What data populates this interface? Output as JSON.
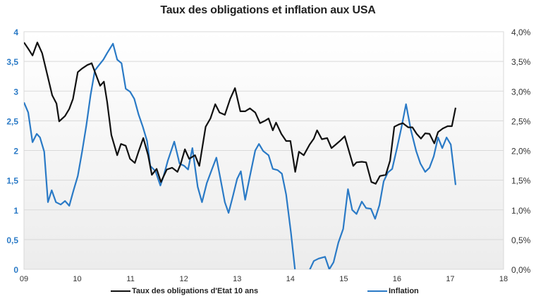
{
  "chart_data": {
    "type": "line",
    "title": "Taux des obligations et inflation aux USA",
    "xlabel": "",
    "ylabel_left": "",
    "ylabel_right": "",
    "x_ticks": [
      "09",
      "10",
      "11",
      "12",
      "13",
      "14",
      "15",
      "16",
      "17",
      "18"
    ],
    "x_range": [
      9,
      18
    ],
    "y_left_ticks": [
      "0",
      "0,5",
      "1",
      "1,5",
      "2",
      "2,5",
      "3",
      "3,5",
      "4"
    ],
    "y_left_range": [
      0,
      4
    ],
    "y_right_ticks": [
      "0,0%",
      "0,5%",
      "1,0%",
      "1,5%",
      "2,0%",
      "2,5%",
      "3,0%",
      "3,5%",
      "4,0%"
    ],
    "y_right_range": [
      0,
      4
    ],
    "grid": true,
    "legend_position": "bottom",
    "colors": {
      "bonds": "#111111",
      "inflation": "#2a7ac6",
      "left_axis": "#2a7ac6",
      "right_axis": "#333333",
      "grid": "#d9d9d9"
    },
    "series": [
      {
        "name": "Taux des obligations d'Etat 10 ans",
        "axis": "left",
        "points": [
          [
            9.0,
            3.82
          ],
          [
            9.09,
            3.7
          ],
          [
            9.16,
            3.6
          ],
          [
            9.25,
            3.82
          ],
          [
            9.34,
            3.64
          ],
          [
            9.45,
            3.23
          ],
          [
            9.53,
            2.93
          ],
          [
            9.61,
            2.79
          ],
          [
            9.66,
            2.49
          ],
          [
            9.77,
            2.58
          ],
          [
            9.85,
            2.7
          ],
          [
            9.92,
            2.87
          ],
          [
            10.01,
            3.32
          ],
          [
            10.09,
            3.38
          ],
          [
            10.19,
            3.44
          ],
          [
            10.27,
            3.47
          ],
          [
            10.37,
            3.23
          ],
          [
            10.43,
            3.09
          ],
          [
            10.5,
            3.16
          ],
          [
            10.56,
            2.82
          ],
          [
            10.64,
            2.26
          ],
          [
            10.75,
            1.92
          ],
          [
            10.82,
            2.11
          ],
          [
            10.91,
            2.08
          ],
          [
            10.99,
            1.86
          ],
          [
            11.08,
            1.79
          ],
          [
            11.15,
            1.98
          ],
          [
            11.24,
            2.21
          ],
          [
            11.33,
            1.92
          ],
          [
            11.4,
            1.59
          ],
          [
            11.49,
            1.69
          ],
          [
            11.57,
            1.47
          ],
          [
            11.68,
            1.68
          ],
          [
            11.78,
            1.71
          ],
          [
            11.88,
            1.64
          ],
          [
            11.94,
            1.77
          ],
          [
            12.02,
            2.02
          ],
          [
            12.1,
            1.86
          ],
          [
            12.21,
            1.92
          ],
          [
            12.29,
            1.74
          ],
          [
            12.41,
            2.4
          ],
          [
            12.5,
            2.54
          ],
          [
            12.59,
            2.78
          ],
          [
            12.67,
            2.64
          ],
          [
            12.77,
            2.6
          ],
          [
            12.87,
            2.87
          ],
          [
            12.96,
            3.05
          ],
          [
            13.06,
            2.66
          ],
          [
            13.15,
            2.66
          ],
          [
            13.24,
            2.71
          ],
          [
            13.34,
            2.64
          ],
          [
            13.43,
            2.46
          ],
          [
            13.52,
            2.5
          ],
          [
            13.59,
            2.54
          ],
          [
            13.67,
            2.34
          ],
          [
            13.73,
            2.47
          ],
          [
            13.83,
            2.28
          ],
          [
            13.92,
            2.16
          ],
          [
            14.0,
            2.16
          ],
          [
            14.09,
            1.64
          ],
          [
            14.16,
            1.98
          ],
          [
            14.25,
            1.92
          ],
          [
            14.36,
            2.1
          ],
          [
            14.44,
            2.2
          ],
          [
            14.5,
            2.34
          ],
          [
            14.59,
            2.19
          ],
          [
            14.69,
            2.21
          ],
          [
            14.77,
            2.04
          ],
          [
            14.85,
            2.1
          ],
          [
            14.94,
            2.17
          ],
          [
            15.02,
            2.24
          ],
          [
            15.09,
            2.02
          ],
          [
            15.18,
            1.74
          ],
          [
            15.24,
            1.8
          ],
          [
            15.34,
            1.81
          ],
          [
            15.42,
            1.8
          ],
          [
            15.52,
            1.47
          ],
          [
            15.6,
            1.44
          ],
          [
            15.68,
            1.57
          ],
          [
            15.79,
            1.59
          ],
          [
            15.87,
            1.83
          ],
          [
            15.95,
            2.4
          ],
          [
            16.04,
            2.44
          ],
          [
            16.11,
            2.46
          ],
          [
            16.21,
            2.39
          ],
          [
            16.29,
            2.39
          ],
          [
            16.37,
            2.28
          ],
          [
            16.45,
            2.2
          ],
          [
            16.53,
            2.29
          ],
          [
            16.61,
            2.28
          ],
          [
            16.7,
            2.12
          ],
          [
            16.77,
            2.31
          ],
          [
            16.86,
            2.37
          ],
          [
            16.95,
            2.41
          ],
          [
            17.03,
            2.41
          ],
          [
            17.1,
            2.72
          ]
        ]
      },
      {
        "name": "Inflation",
        "axis": "right",
        "points": [
          [
            9.0,
            2.81
          ],
          [
            9.08,
            2.64
          ],
          [
            9.16,
            2.14
          ],
          [
            9.24,
            2.28
          ],
          [
            9.3,
            2.22
          ],
          [
            9.38,
            1.98
          ],
          [
            9.45,
            1.13
          ],
          [
            9.52,
            1.33
          ],
          [
            9.6,
            1.13
          ],
          [
            9.69,
            1.09
          ],
          [
            9.77,
            1.15
          ],
          [
            9.85,
            1.07
          ],
          [
            9.93,
            1.33
          ],
          [
            10.01,
            1.57
          ],
          [
            10.09,
            1.98
          ],
          [
            10.17,
            2.42
          ],
          [
            10.25,
            2.93
          ],
          [
            10.33,
            3.35
          ],
          [
            10.41,
            3.44
          ],
          [
            10.49,
            3.53
          ],
          [
            10.56,
            3.64
          ],
          [
            10.67,
            3.8
          ],
          [
            10.75,
            3.53
          ],
          [
            10.83,
            3.47
          ],
          [
            10.91,
            3.04
          ],
          [
            10.99,
            2.99
          ],
          [
            11.07,
            2.87
          ],
          [
            11.15,
            2.61
          ],
          [
            11.23,
            2.4
          ],
          [
            11.31,
            2.16
          ],
          [
            11.37,
            1.74
          ],
          [
            11.47,
            1.65
          ],
          [
            11.56,
            1.41
          ],
          [
            11.62,
            1.57
          ],
          [
            11.7,
            1.83
          ],
          [
            11.82,
            2.15
          ],
          [
            11.92,
            1.78
          ],
          [
            12.01,
            1.74
          ],
          [
            12.08,
            1.68
          ],
          [
            12.16,
            2.04
          ],
          [
            12.26,
            1.39
          ],
          [
            12.34,
            1.13
          ],
          [
            12.43,
            1.45
          ],
          [
            12.53,
            1.69
          ],
          [
            12.61,
            1.88
          ],
          [
            12.69,
            1.51
          ],
          [
            12.77,
            1.13
          ],
          [
            12.84,
            0.95
          ],
          [
            12.92,
            1.23
          ],
          [
            13.0,
            1.52
          ],
          [
            13.07,
            1.65
          ],
          [
            13.15,
            1.17
          ],
          [
            13.24,
            1.57
          ],
          [
            13.34,
            2.0
          ],
          [
            13.41,
            2.11
          ],
          [
            13.49,
            1.99
          ],
          [
            13.59,
            1.92
          ],
          [
            13.67,
            1.69
          ],
          [
            13.76,
            1.67
          ],
          [
            13.84,
            1.61
          ],
          [
            13.92,
            1.26
          ],
          [
            14.01,
            0.62
          ],
          [
            14.09,
            -0.04
          ],
          [
            14.17,
            -0.06
          ],
          [
            14.25,
            -0.02
          ],
          [
            14.34,
            -0.05
          ],
          [
            14.44,
            0.14
          ],
          [
            14.53,
            0.18
          ],
          [
            14.65,
            0.21
          ],
          [
            14.73,
            0.0
          ],
          [
            14.81,
            0.12
          ],
          [
            14.9,
            0.45
          ],
          [
            14.99,
            0.68
          ],
          [
            15.08,
            1.35
          ],
          [
            15.16,
            1.0
          ],
          [
            15.24,
            0.93
          ],
          [
            15.34,
            1.14
          ],
          [
            15.42,
            1.03
          ],
          [
            15.51,
            1.02
          ],
          [
            15.59,
            0.85
          ],
          [
            15.67,
            1.08
          ],
          [
            15.75,
            1.48
          ],
          [
            15.83,
            1.63
          ],
          [
            15.91,
            1.69
          ],
          [
            16.0,
            2.04
          ],
          [
            16.08,
            2.37
          ],
          [
            16.17,
            2.78
          ],
          [
            16.26,
            2.35
          ],
          [
            16.36,
            1.99
          ],
          [
            16.44,
            1.78
          ],
          [
            16.53,
            1.64
          ],
          [
            16.61,
            1.71
          ],
          [
            16.69,
            1.9
          ],
          [
            16.77,
            2.22
          ],
          [
            16.85,
            2.04
          ],
          [
            16.93,
            2.22
          ],
          [
            17.01,
            2.1
          ],
          [
            17.1,
            1.42
          ]
        ]
      }
    ]
  },
  "legend": {
    "bonds_label": "Taux des obligations d'Etat 10 ans",
    "inflation_label": "Inflation"
  }
}
